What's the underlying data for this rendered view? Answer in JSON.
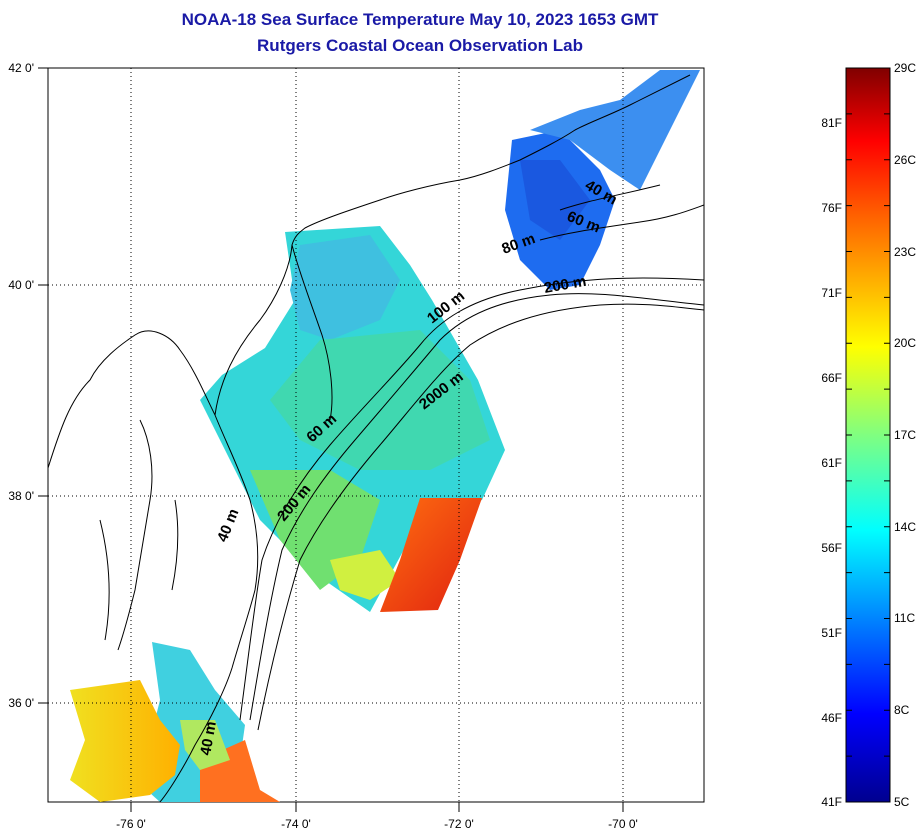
{
  "title": {
    "line1": "NOAA-18 Sea Surface Temperature May 10, 2023 1653 GMT",
    "line2": "Rutgers Coastal Ocean Observation Lab"
  },
  "map": {
    "longitude_ticks": [
      "-76 0'",
      "-74 0'",
      "-72 0'",
      "-70 0'"
    ],
    "latitude_ticks": [
      "42 0'",
      "40 0'",
      "38 0'",
      "36 0'"
    ],
    "contour_labels": [
      "40 m",
      "60 m",
      "80 m",
      "200 m",
      "100 m",
      "2000 m",
      "60 m",
      "200 m",
      "40 m",
      "40 m"
    ]
  },
  "colorbar": {
    "celsius_labels": [
      "29C",
      "26C",
      "23C",
      "20C",
      "17C",
      "14C",
      "11C",
      "8C",
      "5C"
    ],
    "fahrenheit_labels": [
      "81F",
      "76F",
      "71F",
      "66F",
      "61F",
      "56F",
      "51F",
      "46F",
      "41F"
    ],
    "colors": [
      "#00008f",
      "#0000ff",
      "#0080ff",
      "#00ffff",
      "#80ff80",
      "#ffff00",
      "#ff8000",
      "#ff0000",
      "#800000"
    ]
  }
}
